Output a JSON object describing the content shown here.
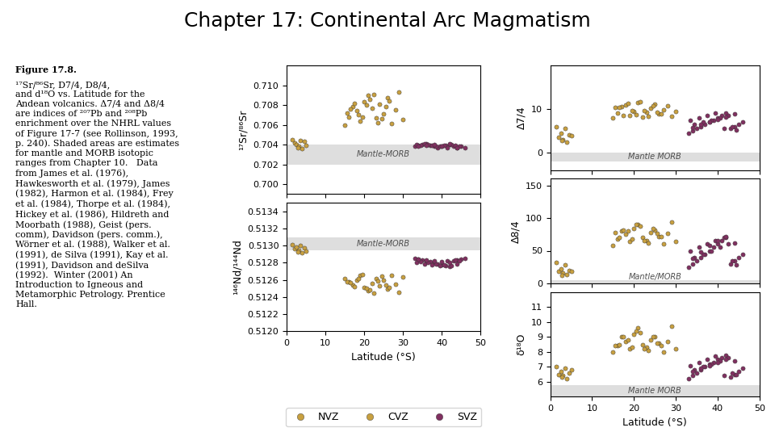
{
  "title": "Chapter 17: Continental Arc Magmatism",
  "caption_title": "Figure 17.8.",
  "caption_body": "¹⁷Sr/⁸⁶Sr, D7/4, D8/4,\nand d¹⁸O vs. Latitude for the\nAndean volcanics. Δ7/4 and Δ8/4\nare indices of ²⁰⁷Pb and ²⁰⁸Pb\nenrichment over the NHRL values\nof Figure 17-7 (see Rollinson, 1993,\np. 240). Shaded areas are estimates\nfor mantle and MORB isotopic\nranges from Chapter 10.   Data\nfrom James et al. (1976),\nHawkesworth et al. (1979), James\n(1982), Harmon et al. (1984), Frey\net al. (1984), Thorpe et al. (1984),\nHickey et al. (1986), Hildreth and\nMoorbath (1988), Geist (pers.\ncomm), Davidson (pers. comm.),\nWörner et al. (1988), Walker et al.\n(1991), de Silva (1991), Kay et al.\n(1991), Davidson and deSilva\n(1992).  Winter (2001) An\nIntroduction to Igneous and\nMetamorphic Petrology. Prentice\nHall.",
  "legend": "lower center",
  "chart_data": [
    {
      "type": "scatter",
      "ylabel": "¹⁷Sr/⁸⁶Sr",
      "xlim": [
        0,
        50
      ],
      "xticks": [
        0,
        10,
        20,
        30,
        40,
        50
      ],
      "ylim": [
        0.699,
        0.712
      ],
      "yticks": [
        {
          "value": 0.7,
          "label": "0.700"
        },
        {
          "value": 0.702,
          "label": "0.702"
        },
        {
          "value": 0.704,
          "label": "0.704"
        },
        {
          "value": 0.706,
          "label": "0.706"
        },
        {
          "value": 0.708,
          "label": "0.708"
        },
        {
          "value": 0.71,
          "label": "0.710"
        }
      ],
      "tick_labels": "y",
      "band": {
        "range": [
          0.702,
          0.704
        ],
        "label": "Mantle-MORB"
      },
      "series": [
        {
          "name": "NVZ",
          "color": "#c8a040",
          "x": [
            2,
            2.5,
            3,
            3.5,
            4,
            4.5,
            5,
            1.5,
            2.8
          ],
          "values": [
            0.7042,
            0.704,
            0.7038,
            0.7044,
            0.7036,
            0.7043,
            0.7039,
            0.7045,
            0.7037
          ]
        },
        {
          "name": "CVZ",
          "color": "#c8a040",
          "x": [
            15,
            16,
            17,
            18,
            19,
            20,
            21,
            22,
            23,
            24,
            25,
            26,
            27,
            28,
            29,
            30,
            15.5,
            17.5,
            19.5,
            21.5,
            23.5,
            25.5,
            16.5,
            18.5,
            20.5,
            22.5,
            24.5,
            26.5
          ],
          "values": [
            0.706,
            0.7068,
            0.7078,
            0.7074,
            0.7064,
            0.7083,
            0.709,
            0.7077,
            0.7067,
            0.7081,
            0.7071,
            0.7087,
            0.7061,
            0.7075,
            0.7093,
            0.7065,
            0.7072,
            0.7082,
            0.7068,
            0.7086,
            0.7062,
            0.7078,
            0.7076,
            0.707,
            0.708,
            0.7091,
            0.7066,
            0.7084
          ]
        },
        {
          "name": "SVZ",
          "color": "#803060",
          "x": [
            33,
            34,
            35,
            36,
            37,
            38,
            39,
            40,
            41,
            42,
            43,
            44,
            45,
            46,
            33.5,
            35.5,
            37.5,
            39.5,
            41.5,
            43.5,
            34.5,
            36.5,
            38.5,
            40.5,
            42.5,
            44.5,
            34,
            36,
            38,
            40,
            42,
            44
          ],
          "values": [
            0.7038,
            0.7039,
            0.704,
            0.7041,
            0.7039,
            0.7038,
            0.7037,
            0.7038,
            0.7039,
            0.704,
            0.7038,
            0.7037,
            0.7038,
            0.7037,
            0.704,
            0.7041,
            0.7039,
            0.7038,
            0.7037,
            0.7039,
            0.7039,
            0.704,
            0.7038,
            0.7039,
            0.704,
            0.7038,
            0.7038,
            0.7039,
            0.704,
            0.7038,
            0.7041,
            0.7037
          ]
        }
      ]
    },
    {
      "type": "scatter",
      "ylabel": "¹⁴⁶Nd/¹⁴⁴Nd",
      "xlabel": "Latitude (°S)",
      "xlim": [
        0,
        50
      ],
      "xticks": [
        0,
        10,
        20,
        30,
        40,
        50
      ],
      "ylim": [
        0.512,
        0.5135
      ],
      "yticks": [
        {
          "value": 0.512,
          "label": "0.5120"
        },
        {
          "value": 0.5122,
          "label": "0.5122"
        },
        {
          "value": 0.5124,
          "label": "0.5124"
        },
        {
          "value": 0.5126,
          "label": "0.5126"
        },
        {
          "value": 0.5128,
          "label": "0.5128"
        },
        {
          "value": 0.513,
          "label": "0.5130"
        },
        {
          "value": 0.5132,
          "label": "0.5132"
        },
        {
          "value": 0.5134,
          "label": "0.5134"
        }
      ],
      "band": {
        "range": [
          0.51295,
          0.5131
        ],
        "label": "Mantle-MORB"
      },
      "series": [
        {
          "name": "NVZ",
          "color": "#c8a040",
          "x": [
            2,
            2.5,
            3,
            3.5,
            4,
            4.5,
            5,
            1.5,
            2.8
          ],
          "values": [
            0.51296,
            0.51298,
            0.51295,
            0.513,
            0.51292,
            0.51297,
            0.51294,
            0.51301,
            0.51293
          ]
        },
        {
          "name": "CVZ",
          "color": "#c8a040",
          "x": [
            15,
            16,
            17,
            18,
            19,
            20,
            21,
            22,
            23,
            24,
            25,
            26,
            27,
            28,
            29,
            30,
            15.5,
            17.5,
            19.5,
            21.5,
            23.5,
            25.5,
            16.5,
            18.5,
            20.5,
            22.5,
            24.5,
            26.5
          ],
          "values": [
            0.51262,
            0.51258,
            0.51254,
            0.5126,
            0.51265,
            0.51251,
            0.51247,
            0.51256,
            0.51262,
            0.51253,
            0.5126,
            0.51249,
            0.51265,
            0.51255,
            0.51246,
            0.51263,
            0.51258,
            0.51252,
            0.51266,
            0.51248,
            0.51259,
            0.51254,
            0.51257,
            0.51262,
            0.5125,
            0.51245,
            0.51264,
            0.51251
          ]
        },
        {
          "name": "SVZ",
          "color": "#803060",
          "x": [
            33,
            34,
            35,
            36,
            37,
            38,
            39,
            40,
            41,
            42,
            43,
            44,
            45,
            46,
            33.5,
            35.5,
            37.5,
            39.5,
            41.5,
            43.5,
            34.5,
            36.5,
            38.5,
            40.5,
            42.5,
            44.5,
            34,
            36,
            38,
            40,
            42,
            44
          ],
          "values": [
            0.51285,
            0.51284,
            0.51283,
            0.51282,
            0.51281,
            0.5128,
            0.51279,
            0.51278,
            0.51277,
            0.51276,
            0.51282,
            0.51283,
            0.51284,
            0.51285,
            0.5128,
            0.51279,
            0.51278,
            0.51277,
            0.51282,
            0.51283,
            0.51281,
            0.5128,
            0.51279,
            0.51278,
            0.51277,
            0.51282,
            0.51284,
            0.51283,
            0.51282,
            0.51281,
            0.5128,
            0.51279
          ]
        }
      ]
    },
    {
      "type": "scatter",
      "ylabel": "Δ7/4",
      "xlim": [
        0,
        50
      ],
      "xticks": [
        0,
        10,
        20,
        30,
        40,
        50
      ],
      "ylim": [
        -4,
        20
      ],
      "yticks": [
        0,
        10
      ],
      "tick_labels": "y",
      "band": {
        "range": [
          -2,
          0
        ],
        "label": "Mantle MORB"
      },
      "series": [
        {
          "name": "NVZ",
          "color": "#c8a040",
          "x": [
            2,
            2.5,
            3,
            3.5,
            4,
            4.5,
            5,
            1.5,
            2.8
          ],
          "values": [
            3.5,
            4.5,
            3.0,
            5.5,
            2.5,
            4.0,
            3.8,
            6.0,
            2.8
          ]
        },
        {
          "name": "CVZ",
          "color": "#c8a040",
          "x": [
            15,
            16,
            17,
            18,
            19,
            20,
            21,
            22,
            23,
            24,
            25,
            26,
            27,
            28,
            29,
            30,
            15.5,
            17.5,
            19.5,
            21.5,
            23.5,
            25.5,
            16.5,
            18.5,
            20.5,
            22.5,
            24.5,
            26.5
          ],
          "values": [
            8,
            9,
            10.5,
            11,
            8.5,
            9.5,
            11.5,
            8.2,
            9.2,
            10.2,
            11.2,
            8.8,
            9.8,
            10.8,
            8.4,
            9.4,
            10.4,
            8.6,
            9.6,
            11.6,
            8.3,
            9.3,
            10.3,
            11.3,
            8.7,
            9.7,
            10.7,
            8.9
          ]
        },
        {
          "name": "SVZ",
          "color": "#803060",
          "x": [
            33,
            34,
            35,
            36,
            37,
            38,
            39,
            40,
            41,
            42,
            43,
            44,
            45,
            46,
            33.5,
            35.5,
            37.5,
            39.5,
            41.5,
            43.5,
            34.5,
            36.5,
            38.5,
            40.5,
            42.5,
            44.5,
            34,
            36,
            38,
            40,
            42,
            44
          ],
          "values": [
            4.5,
            5.0,
            5.5,
            6.0,
            6.5,
            7.0,
            7.5,
            8.0,
            8.5,
            9.0,
            5.5,
            6.0,
            6.5,
            7.0,
            7.5,
            8.0,
            8.5,
            9.0,
            5.5,
            6.0,
            6.5,
            7.0,
            7.5,
            8.0,
            8.5,
            5.2,
            5.8,
            6.4,
            7.0,
            7.6,
            8.2,
            8.8
          ]
        }
      ]
    },
    {
      "type": "scatter",
      "ylabel": "Δ8/4",
      "xlim": [
        0,
        50
      ],
      "xticks": [
        0,
        10,
        20,
        30,
        40,
        50
      ],
      "ylim": [
        0,
        160
      ],
      "yticks": [
        0,
        50,
        100,
        150
      ],
      "tick_labels": "y",
      "band": {
        "range": [
          -5,
          5
        ],
        "label": "Mantle/MORB"
      },
      "series": [
        {
          "name": "NVZ",
          "color": "#c8a040",
          "x": [
            2,
            2.5,
            3,
            3.5,
            4,
            4.5,
            5,
            1.5,
            2.8
          ],
          "values": [
            18,
            22,
            16,
            28,
            14,
            20,
            18,
            32,
            12
          ]
        },
        {
          "name": "CVZ",
          "color": "#c8a040",
          "x": [
            15,
            16,
            17,
            18,
            19,
            20,
            21,
            22,
            23,
            24,
            25,
            26,
            27,
            28,
            29,
            30,
            15.5,
            17.5,
            19.5,
            21.5,
            23.5,
            25.5,
            16.5,
            18.5,
            20.5,
            22.5,
            24.5,
            26.5
          ],
          "values": [
            58,
            68,
            80,
            75,
            64,
            84,
            90,
            70,
            66,
            78,
            82,
            72,
            60,
            76,
            94,
            64,
            78,
            82,
            68,
            88,
            62,
            76,
            70,
            80,
            90,
            66,
            84,
            72
          ]
        },
        {
          "name": "SVZ",
          "color": "#803060",
          "x": [
            33,
            34,
            35,
            36,
            37,
            38,
            39,
            40,
            41,
            42,
            43,
            44,
            45,
            46,
            33.5,
            35.5,
            37.5,
            39.5,
            41.5,
            43.5,
            34.5,
            36.5,
            38.5,
            40.5,
            42.5,
            44.5,
            34,
            36,
            38,
            40,
            42,
            44
          ],
          "values": [
            25,
            30,
            35,
            40,
            45,
            50,
            55,
            60,
            65,
            70,
            30,
            35,
            40,
            45,
            50,
            55,
            60,
            65,
            70,
            35,
            40,
            45,
            50,
            55,
            60,
            28,
            38,
            48,
            58,
            65,
            72,
            62
          ]
        }
      ]
    },
    {
      "type": "scatter",
      "ylabel": "δ¹⁸O",
      "xlabel": "Latitude (°S)",
      "xlim": [
        0,
        50
      ],
      "xticks": [
        0,
        10,
        20,
        30,
        40,
        50
      ],
      "ylim": [
        5.0,
        12.0
      ],
      "yticks": [
        6,
        7,
        8,
        9,
        10,
        11
      ],
      "band": {
        "range": [
          5.0,
          5.8
        ],
        "label": "Mantle MORB"
      },
      "series": [
        {
          "name": "NVZ",
          "color": "#c8a040",
          "x": [
            2,
            2.5,
            3,
            3.5,
            4,
            4.5,
            5,
            1.5,
            2.8
          ],
          "values": [
            6.5,
            6.7,
            6.4,
            6.9,
            6.2,
            6.6,
            6.8,
            7.0,
            6.3
          ]
        },
        {
          "name": "CVZ",
          "color": "#c8a040",
          "x": [
            15,
            16,
            17,
            18,
            19,
            20,
            21,
            22,
            23,
            24,
            25,
            26,
            27,
            28,
            29,
            30,
            15.5,
            17.5,
            19.5,
            21.5,
            23.5,
            25.5,
            16.5,
            18.5,
            20.5,
            22.5,
            24.5,
            26.5
          ],
          "values": [
            8.0,
            8.4,
            9.0,
            8.7,
            8.2,
            9.2,
            9.6,
            8.5,
            8.3,
            8.8,
            9.0,
            8.6,
            8.0,
            8.7,
            9.7,
            8.2,
            8.4,
            9.0,
            8.3,
            9.3,
            8.1,
            8.6,
            8.5,
            8.8,
            9.4,
            8.2,
            9.0,
            8.4
          ]
        },
        {
          "name": "SVZ",
          "color": "#803060",
          "x": [
            33,
            34,
            35,
            36,
            37,
            38,
            39,
            40,
            41,
            42,
            43,
            44,
            45,
            46,
            33.5,
            35.5,
            37.5,
            39.5,
            41.5,
            43.5,
            34.5,
            36.5,
            38.5,
            40.5,
            42.5,
            44.5,
            34,
            36,
            38,
            40,
            42,
            44
          ],
          "values": [
            6.2,
            6.4,
            6.6,
            6.8,
            7.0,
            7.2,
            7.3,
            7.5,
            7.6,
            7.8,
            6.3,
            6.5,
            6.7,
            6.9,
            7.1,
            7.3,
            7.5,
            7.7,
            6.4,
            6.6,
            6.8,
            7.0,
            7.2,
            7.4,
            7.6,
            6.5,
            6.7,
            6.9,
            7.1,
            7.3,
            7.5,
            7.4
          ]
        }
      ]
    }
  ]
}
